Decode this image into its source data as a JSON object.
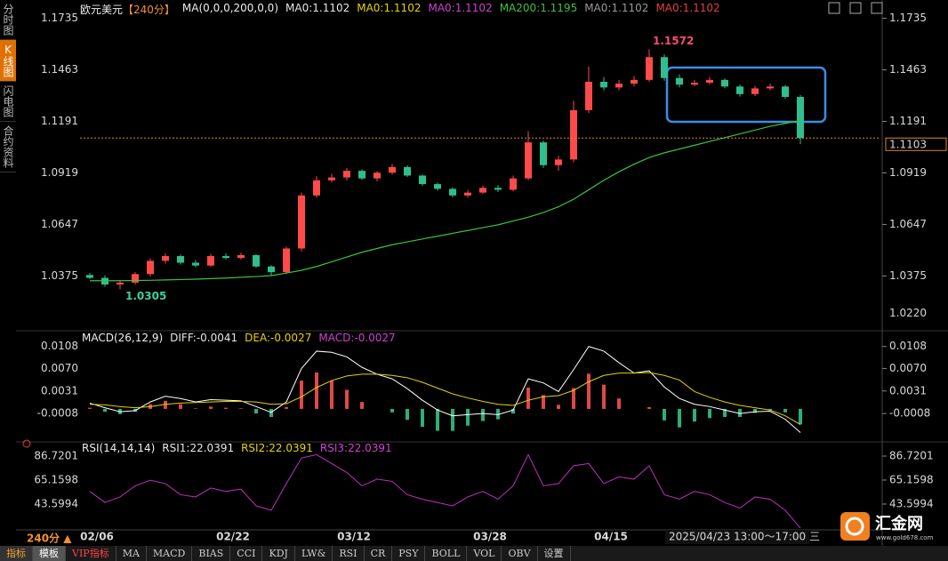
{
  "sidebar": [
    "分时图",
    "K线图",
    "闪电图",
    "合约资料"
  ],
  "chart_data": [
    {
      "type": "candlestick",
      "title": "欧元美元",
      "period": "【240分】",
      "indicator": "MA(0,0,0,200,0,0)",
      "legend": [
        {
          "label": "MA0:1.1102",
          "color": "#e6e6e6"
        },
        {
          "label": "MA0:1.1102",
          "color": "#e6d200"
        },
        {
          "label": "MA0:1.1102",
          "color": "#d040d0"
        },
        {
          "label": "MA200:1.1195",
          "color": "#3cc23c"
        },
        {
          "label": "MA0:1.1102",
          "color": "#999999"
        },
        {
          "label": "MA0:1.1102",
          "color": "#e04040"
        }
      ],
      "categories": [
        "02/06",
        null,
        null,
        null,
        null,
        null,
        null,
        null,
        null,
        "02/22",
        null,
        null,
        null,
        null,
        null,
        null,
        null,
        "03/12",
        null,
        null,
        null,
        null,
        null,
        null,
        null,
        null,
        "03/28",
        null,
        null,
        null,
        null,
        null,
        null,
        null,
        "04/15",
        null,
        null,
        null,
        null,
        null,
        null,
        null,
        null,
        null,
        null,
        null,
        null,
        null
      ],
      "open": [
        1.038,
        1.0365,
        1.033,
        1.034,
        1.0385,
        1.0455,
        1.048,
        1.0445,
        1.043,
        1.048,
        1.047,
        1.0485,
        1.0425,
        1.0395,
        1.052,
        1.08,
        1.088,
        1.0895,
        1.093,
        1.089,
        1.092,
        1.095,
        1.0905,
        1.086,
        1.0835,
        1.08,
        1.0815,
        1.084,
        1.083,
        1.089,
        1.108,
        1.096,
        1.099,
        1.125,
        1.14,
        1.137,
        1.139,
        1.141,
        1.153,
        1.142,
        1.1385,
        1.1395,
        1.141,
        1.1375,
        1.1335,
        1.1365,
        1.1375,
        1.132
      ],
      "high": [
        1.0392,
        1.0378,
        1.0352,
        1.0395,
        1.0468,
        1.0495,
        1.0488,
        1.046,
        1.0492,
        1.0495,
        1.0498,
        1.049,
        1.0432,
        1.053,
        1.0815,
        1.0902,
        1.0915,
        1.0945,
        1.0938,
        1.0928,
        1.0965,
        1.0958,
        1.091,
        1.0868,
        1.0842,
        1.0828,
        1.0852,
        1.0855,
        1.0905,
        1.114,
        1.109,
        1.101,
        1.13,
        1.148,
        1.1425,
        1.141,
        1.143,
        1.1572,
        1.1545,
        1.144,
        1.141,
        1.1425,
        1.1418,
        1.1385,
        1.1378,
        1.139,
        1.1382,
        1.133
      ],
      "low": [
        1.0358,
        1.0318,
        1.0305,
        1.033,
        1.0372,
        1.044,
        1.0435,
        1.042,
        1.0422,
        1.0462,
        1.0462,
        1.0418,
        1.0378,
        1.0385,
        1.0505,
        1.0788,
        1.087,
        1.088,
        1.0882,
        1.0875,
        1.091,
        1.0898,
        1.085,
        1.0825,
        1.079,
        1.0788,
        1.0808,
        1.0818,
        1.0822,
        1.088,
        1.0945,
        1.093,
        1.0975,
        1.1235,
        1.1355,
        1.1355,
        1.1375,
        1.14,
        1.1405,
        1.137,
        1.1375,
        1.1385,
        1.1365,
        1.1322,
        1.1325,
        1.1355,
        1.131,
        1.1071
      ],
      "close": [
        1.0365,
        1.033,
        1.034,
        1.0385,
        1.0455,
        1.048,
        1.0445,
        1.043,
        1.048,
        1.047,
        1.0485,
        1.0425,
        1.0395,
        1.052,
        1.08,
        1.088,
        1.0895,
        1.093,
        1.089,
        1.092,
        1.095,
        1.0905,
        1.086,
        1.0835,
        1.08,
        1.0815,
        1.084,
        1.083,
        1.089,
        1.108,
        1.096,
        1.099,
        1.125,
        1.14,
        1.137,
        1.139,
        1.141,
        1.153,
        1.142,
        1.1385,
        1.1395,
        1.141,
        1.1375,
        1.1335,
        1.1365,
        1.1375,
        1.132,
        1.1103
      ],
      "up_color": "#ff4a4a",
      "down_color": "#2fbf8f",
      "series": [
        {
          "color": "#3cc23c",
          "values": [
            1.035,
            1.035,
            1.035,
            1.0351,
            1.0352,
            1.0354,
            1.0356,
            1.0358,
            1.0361,
            1.0364,
            1.0368,
            1.0372,
            1.0377,
            1.039,
            1.0405,
            1.0425,
            1.045,
            1.0475,
            1.05,
            1.052,
            1.054,
            1.0555,
            1.057,
            1.0585,
            1.06,
            1.0615,
            1.063,
            1.0645,
            1.0665,
            1.0685,
            1.071,
            1.074,
            1.078,
            1.083,
            1.088,
            1.0925,
            1.0965,
            1.1,
            1.1025,
            1.1045,
            1.1065,
            1.1085,
            1.1105,
            1.1125,
            1.1145,
            1.1165,
            1.118,
            1.1195
          ]
        }
      ],
      "current_price": 1.1103,
      "current_color": "#e08a1e",
      "bottom_label": {
        "value": 1.022,
        "label": "1.0220"
      },
      "ylim": [
        1.01,
        1.178
      ],
      "yticks": [
        1.0375,
        1.0647,
        1.0919,
        1.1191,
        1.1463,
        1.1735
      ]
    },
    {
      "type": "macd",
      "title": "MACD(26,12,9)",
      "legend": [
        {
          "label": "DIFF:-0.0041",
          "color": "#e6e6e6"
        },
        {
          "label": "DEA:-0.0027",
          "color": "#e6d200"
        },
        {
          "label": "MACD:-0.0027",
          "color": "#d040d0"
        }
      ],
      "series": [
        {
          "color": "#ffffff",
          "values": [
            0.001,
            0.0002,
            -0.0005,
            -0.0003,
            0.0012,
            0.0022,
            0.0018,
            0.0012,
            0.0016,
            0.0015,
            0.0014,
            0.0004,
            -0.0006,
            0.0012,
            0.007,
            0.01,
            0.0098,
            0.009,
            0.0072,
            0.006,
            0.0052,
            0.0035,
            0.0015,
            -0.0002,
            -0.0012,
            -0.001,
            -0.0008,
            -0.001,
            -0.0002,
            0.0052,
            0.0045,
            0.003,
            0.0068,
            0.0108,
            0.01,
            0.008,
            0.0062,
            0.0066,
            0.0038,
            0.0018,
            0.0008,
            0.0004,
            -0.0002,
            -0.0008,
            -0.0005,
            -0.0004,
            -0.0018,
            -0.0041
          ]
        },
        {
          "color": "#e6d200",
          "values": [
            0.0008,
            0.0007,
            0.0004,
            0.0002,
            0.0004,
            0.0008,
            0.001,
            0.0011,
            0.0012,
            0.0013,
            0.0013,
            0.0012,
            0.0008,
            0.0009,
            0.0021,
            0.0037,
            0.0049,
            0.0057,
            0.006,
            0.006,
            0.0058,
            0.0054,
            0.0046,
            0.0036,
            0.0026,
            0.0019,
            0.0013,
            0.0008,
            0.0006,
            0.0015,
            0.0021,
            0.0023,
            0.0032,
            0.0047,
            0.0058,
            0.0062,
            0.0062,
            0.0063,
            0.0058,
            0.005,
            0.003,
            0.002,
            0.0012,
            0.0006,
            0.0002,
            -0.0002,
            -0.0012,
            -0.0027
          ]
        }
      ],
      "histogram": {
        "up_color": "#e04848",
        "down_color": "#2fae7a",
        "values": [
          0.0002,
          -0.0005,
          -0.0009,
          -0.0005,
          0.0008,
          0.0014,
          0.0008,
          0.0001,
          0.0004,
          0.0002,
          0.0001,
          -0.0008,
          -0.0014,
          0.0003,
          0.0049,
          0.0063,
          0.0049,
          0.0033,
          0.0012,
          0.0,
          -0.0006,
          -0.0019,
          -0.0031,
          -0.0038,
          -0.0038,
          -0.0029,
          -0.0021,
          -0.0018,
          -0.0008,
          0.0037,
          0.0024,
          0.0007,
          0.0036,
          0.0061,
          0.0042,
          0.0018,
          0.0,
          0.0003,
          -0.002,
          -0.0032,
          -0.0022,
          -0.0016,
          -0.0014,
          -0.0014,
          -0.0007,
          -0.0002,
          -0.0006,
          -0.0027
        ]
      },
      "ylim": [
        -0.0054,
        0.0123
      ],
      "yticks": [
        -0.0008,
        0.0031,
        {
          "value": 0.007,
          "label": "0.0070"
        },
        0.0108
      ]
    },
    {
      "type": "line",
      "title": "RSI(14,14,14)",
      "legend": [
        {
          "label": "RSI1:22.0391",
          "color": "#e6e6e6"
        },
        {
          "label": "RSI2:22.0391",
          "color": "#e6d200"
        },
        {
          "label": "RSI3:22.0391",
          "color": "#d040d0"
        }
      ],
      "series": [
        {
          "color": "#c030c0",
          "values": [
            55,
            45,
            50,
            60,
            65,
            62,
            52,
            50,
            58,
            55,
            57,
            42,
            38,
            62,
            85,
            88,
            80,
            72,
            60,
            66,
            64,
            52,
            48,
            45,
            42,
            50,
            55,
            48,
            60,
            88,
            60,
            62,
            78,
            80,
            62,
            68,
            66,
            78,
            52,
            48,
            55,
            52,
            45,
            40,
            50,
            48,
            38,
            22.0391
          ]
        }
      ],
      "ylim": [
        21.2,
        93.1
      ],
      "yticks": [
        43.5994,
        65.1598,
        86.7201
      ]
    }
  ],
  "period_selector": "240分 ▲",
  "time_box": "2025/04/23 13:00～17:00 三",
  "toolbar": [
    "指标",
    "模板",
    "VIP指标",
    "MA",
    "MACD",
    "BIAS",
    "CCI",
    "KDJ",
    "LW&",
    "RSI",
    "CR",
    "PSY",
    "BOLL",
    "VOL",
    "OBV",
    "设置"
  ],
  "logo": {
    "name": "汇金网",
    "url": "www.gold678.com"
  }
}
